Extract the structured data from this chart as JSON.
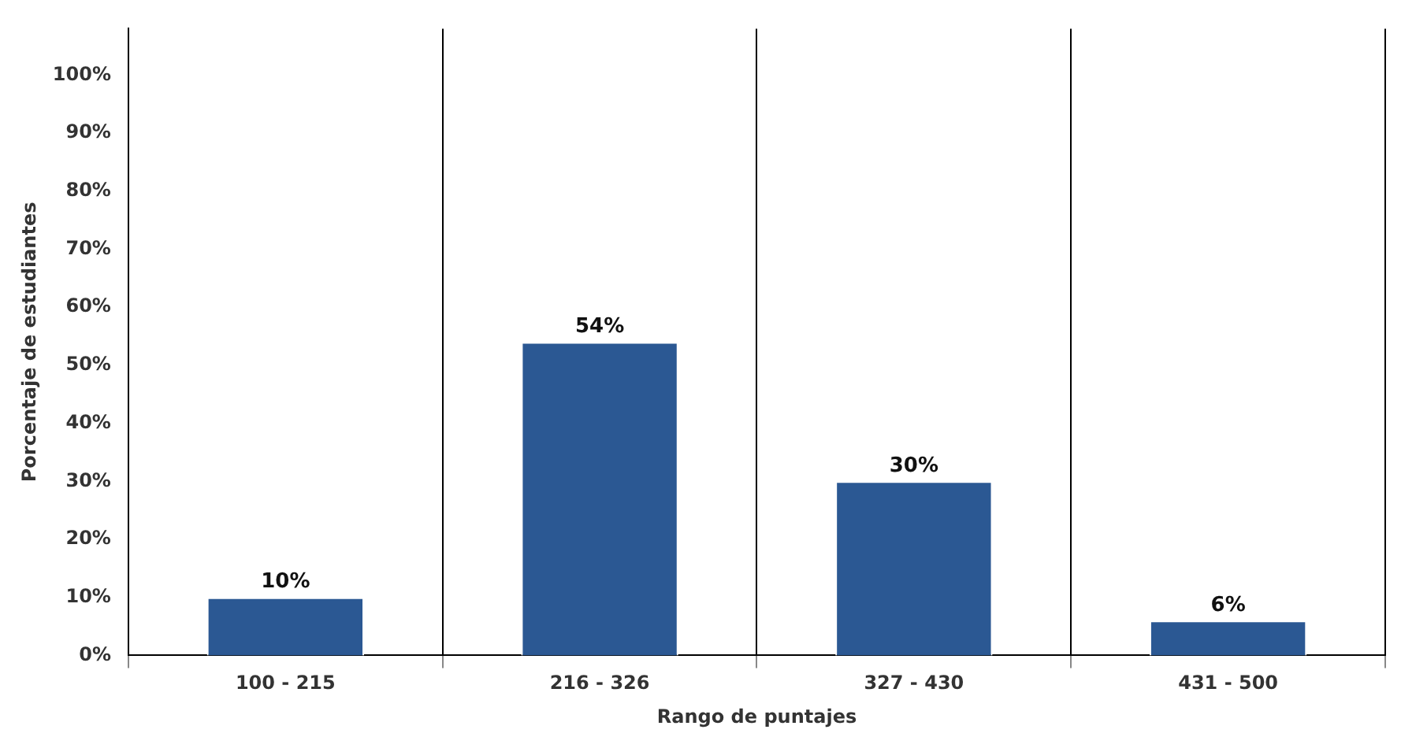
{
  "chart_data": {
    "type": "bar",
    "xlabel": "Rango de puntajes",
    "ylabel": "Porcentaje de estudiantes",
    "categories": [
      "100 - 215",
      "216 - 326",
      "327 - 430",
      "431 - 500"
    ],
    "values": [
      10,
      54,
      30,
      6
    ],
    "color": "#2b5893",
    "value_labels": [
      "10%",
      "54%",
      "30%",
      "6%"
    ],
    "ylim": [
      0,
      108
    ],
    "yticks": [
      {
        "value": 0,
        "label": "0%"
      },
      {
        "value": 10,
        "label": "10%"
      },
      {
        "value": 20,
        "label": "20%"
      },
      {
        "value": 30,
        "label": "30%"
      },
      {
        "value": 40,
        "label": "40%"
      },
      {
        "value": 50,
        "label": "50%"
      },
      {
        "value": 60,
        "label": "60%"
      },
      {
        "value": 70,
        "label": "70%"
      },
      {
        "value": 80,
        "label": "80%"
      },
      {
        "value": 90,
        "label": "90%"
      },
      {
        "value": 100,
        "label": "100%"
      }
    ],
    "grid": "x",
    "legend": false
  }
}
